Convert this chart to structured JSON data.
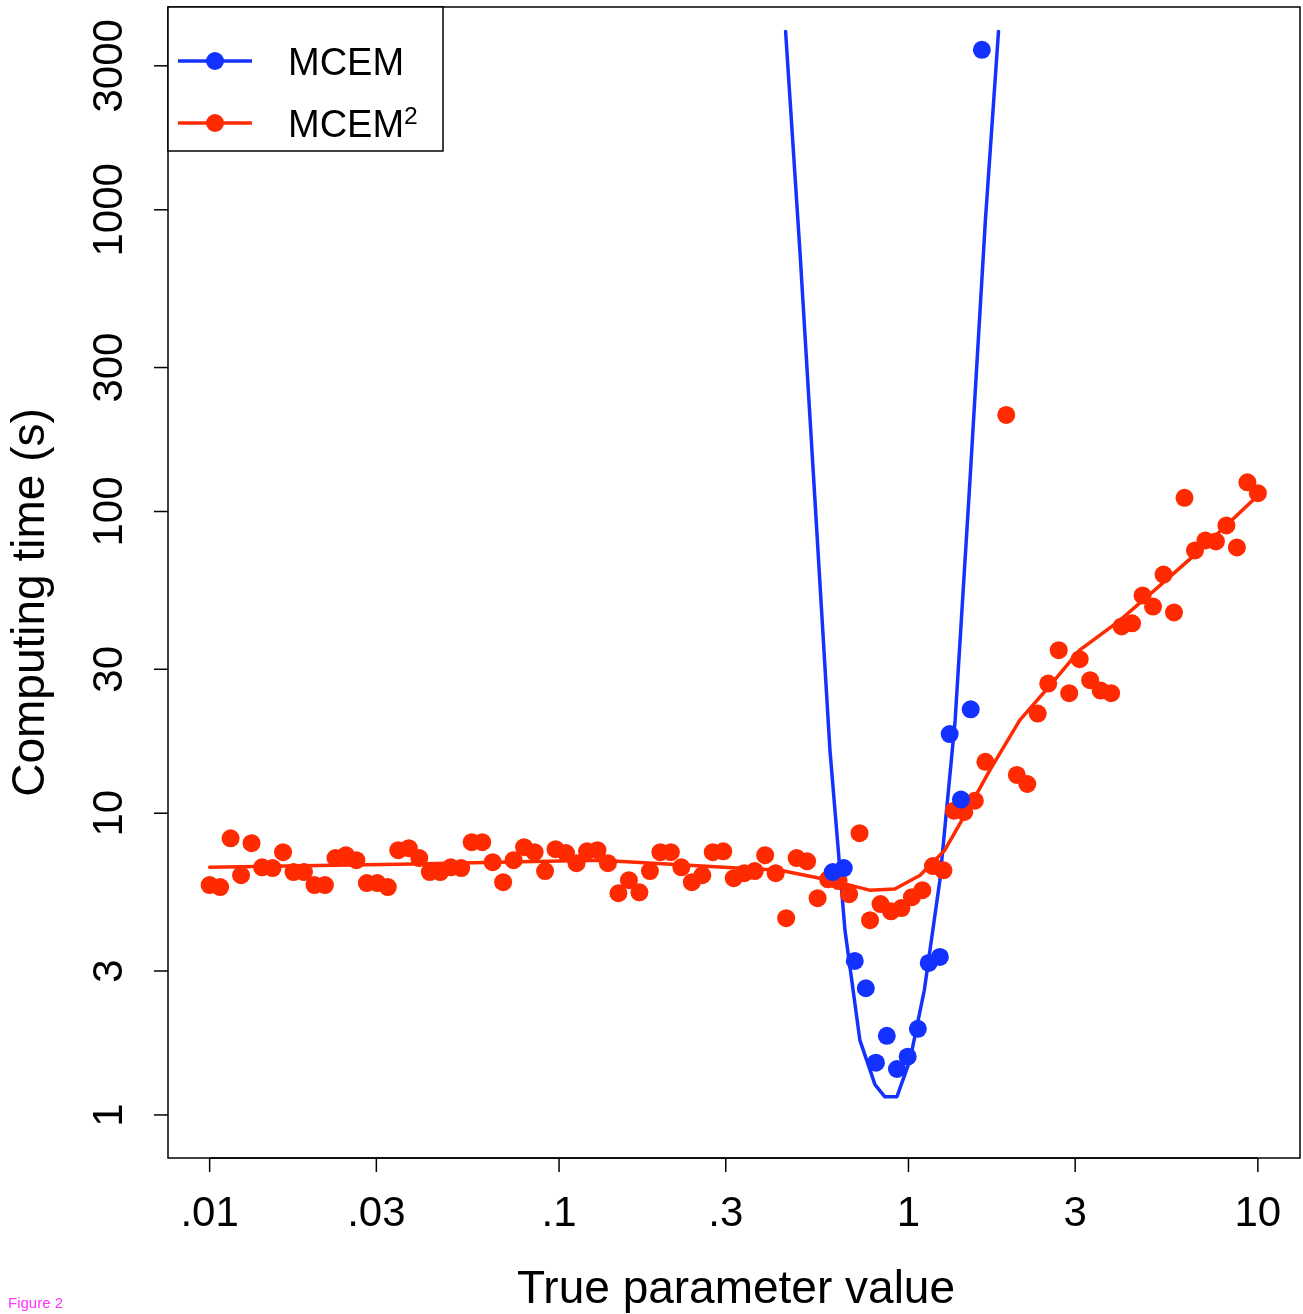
{
  "chart_data": {
    "type": "scatter",
    "xlabel": "True parameter value",
    "ylabel": "Computing time (s)",
    "log": "xy",
    "grid": false,
    "legend": "top left",
    "marker": "circle",
    "line_style": "solid",
    "xlim": [
      0.0076,
      13.2
    ],
    "ylim": [
      0.72,
      4700
    ],
    "xticks": [
      {
        "value": 0.01,
        "label": ".01"
      },
      {
        "value": 0.03,
        "label": ".03"
      },
      {
        "value": 0.1,
        "label": ".1"
      },
      {
        "value": 0.3,
        "label": ".3"
      },
      1,
      3,
      10
    ],
    "yticks": [
      1,
      3,
      10,
      30,
      100,
      300,
      1000,
      3000
    ],
    "annotations": [
      "Figure 2"
    ],
    "series": [
      {
        "name": "MCEM",
        "color": "#1432ff",
        "x": [
          0.607,
          0.653,
          0.702,
          0.755,
          0.807,
          0.867,
          0.927,
          0.995,
          1.064,
          1.143,
          1.23,
          1.312,
          1.413,
          1.507,
          1.622
        ],
        "values": [
          6.38,
          6.58,
          3.24,
          2.63,
          1.49,
          1.83,
          1.42,
          1.56,
          1.93,
          3.19,
          3.34,
          18.3,
          11.1,
          22.1,
          3390
        ]
      },
      {
        "name": "MCEM$^{2}$",
        "color": "#ff2a00",
        "x": [
          0.01,
          0.01072,
          0.01148,
          0.0123,
          0.01318,
          0.01413,
          0.01514,
          0.01622,
          0.01738,
          0.01862,
          0.01995,
          0.02138,
          0.02291,
          0.02455,
          0.0263,
          0.02818,
          0.0302,
          0.03236,
          0.03467,
          0.03715,
          0.03981,
          0.04266,
          0.04571,
          0.04898,
          0.05248,
          0.05623,
          0.06026,
          0.06457,
          0.06918,
          0.07413,
          0.07943,
          0.08511,
          0.0912,
          0.09772,
          0.1047,
          0.1122,
          0.1202,
          0.1288,
          0.138,
          0.1479,
          0.1585,
          0.1698,
          0.182,
          0.195,
          0.2089,
          0.2239,
          0.2399,
          0.257,
          0.2754,
          0.2951,
          0.3162,
          0.3388,
          0.3631,
          0.389,
          0.4169,
          0.4467,
          0.4786,
          0.5129,
          0.5495,
          0.5888,
          0.631,
          0.6761,
          0.7244,
          0.7762,
          0.8318,
          0.8913,
          0.955,
          1.023,
          1.096,
          1.175,
          1.259,
          1.349,
          1.445,
          1.549,
          1.66,
          1.905,
          2.042,
          2.188,
          2.344,
          2.512,
          2.692,
          2.884,
          3.09,
          3.311,
          3.548,
          3.802,
          4.074,
          4.365,
          4.677,
          5.012,
          5.37,
          5.754,
          6.166,
          6.607,
          7.079,
          7.586,
          8.128,
          8.71,
          9.333,
          10
        ],
        "values": [
          5.78,
          5.69,
          8.26,
          6.23,
          7.96,
          6.62,
          6.58,
          7.43,
          6.38,
          6.38,
          5.78,
          5.78,
          7.1,
          7.26,
          6.99,
          5.87,
          5.87,
          5.69,
          7.54,
          7.66,
          7.1,
          6.38,
          6.38,
          6.62,
          6.58,
          8.02,
          8.02,
          6.88,
          5.91,
          6.99,
          7.72,
          7.43,
          6.43,
          7.6,
          7.38,
          6.83,
          7.48,
          7.54,
          6.83,
          5.43,
          6.0,
          5.47,
          6.43,
          7.43,
          7.43,
          6.62,
          5.91,
          6.23,
          7.43,
          7.48,
          6.09,
          6.33,
          6.43,
          7.26,
          6.33,
          4.49,
          7.1,
          6.93,
          5.23,
          6.04,
          5.96,
          5.39,
          8.59,
          4.42,
          5.0,
          4.73,
          4.85,
          5.27,
          5.56,
          6.68,
          6.47,
          10.2,
          10.1,
          11.0,
          14.8,
          209,
          13.4,
          12.5,
          21.4,
          26.9,
          34.7,
          25.0,
          32.4,
          27.6,
          25.5,
          25.0,
          41.6,
          42.6,
          52.7,
          48.4,
          61.8,
          46.3,
          111,
          74.3,
          80.2,
          79.6,
          89.9,
          76.0,
          125,
          115
        ]
      },
      {
        "type": "line",
        "marker": "none",
        "color": "#1432ff",
        "x": [
          0.445,
          0.489,
          0.54,
          0.596,
          0.658,
          0.726,
          0.802,
          0.855,
          0.927,
          1.01,
          1.11,
          1.23,
          1.36,
          1.5,
          1.66,
          1.81
        ],
        "values": [
          3900,
          731,
          109,
          16.2,
          4.1,
          1.77,
          1.26,
          1.15,
          1.15,
          1.52,
          2.59,
          6.0,
          20.3,
          127,
          920,
          3900
        ]
      },
      {
        "type": "line",
        "marker": "none",
        "color": "#ff2a00",
        "x": [
          0.01,
          0.035,
          0.131,
          0.429,
          0.596,
          0.774,
          0.914,
          1.08,
          1.27,
          1.45,
          1.71,
          2.08,
          2.54,
          3.09,
          4.03,
          5.25,
          6.82,
          10
        ],
        "values": [
          6.62,
          6.78,
          6.99,
          6.47,
          6.0,
          5.56,
          5.61,
          6.23,
          7.54,
          9.85,
          13.9,
          20.3,
          26.5,
          34.7,
          43.6,
          56.9,
          74.3,
          113
        ]
      }
    ]
  }
}
